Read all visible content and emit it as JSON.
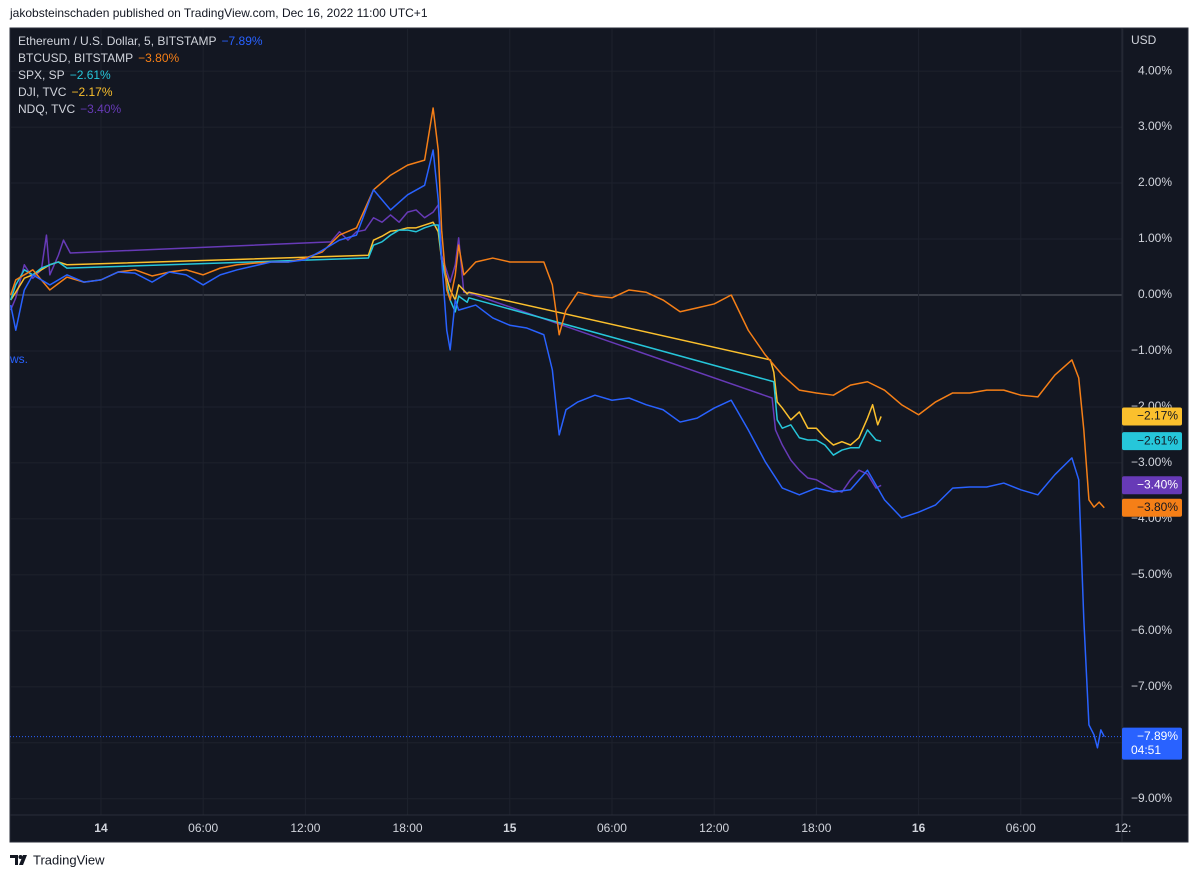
{
  "chart_data": {
    "type": "line",
    "title": "jakobsteinschaden published on TradingView.com, Dec 16, 2022 11:00 UTC+1",
    "source": "TradingView",
    "y_label": "USD",
    "annotation": "ws.",
    "grid": true,
    "legend": "top-left",
    "xlim": [
      -5.34,
      60
    ],
    "xticks": [
      {
        "value": 0,
        "label": "14"
      },
      {
        "value": 6,
        "label": "06:00"
      },
      {
        "value": 12,
        "label": "12:00"
      },
      {
        "value": 18,
        "label": "18:00"
      },
      {
        "value": 24,
        "label": "15"
      },
      {
        "value": 30,
        "label": "06:00"
      },
      {
        "value": 36,
        "label": "12:00"
      },
      {
        "value": 42,
        "label": "18:00"
      },
      {
        "value": 48,
        "label": "16"
      },
      {
        "value": 54,
        "label": "06:00"
      },
      {
        "value": 60,
        "label": "12:"
      }
    ],
    "ylim": [
      -9.29,
      4.77
    ],
    "yticks": [
      {
        "value": 4,
        "label": "4.00%"
      },
      {
        "value": 3,
        "label": "3.00%"
      },
      {
        "value": 2,
        "label": "2.00%"
      },
      {
        "value": 1,
        "label": "1.00%"
      },
      {
        "value": 0,
        "label": "0.00%"
      },
      {
        "value": -1,
        "label": "−1.00%"
      },
      {
        "value": -2,
        "label": "−2.00%"
      },
      {
        "value": -3,
        "label": "−3.00%"
      },
      {
        "value": -4,
        "label": "−4.00%"
      },
      {
        "value": -5,
        "label": "−5.00%"
      },
      {
        "value": -6,
        "label": "−6.00%"
      },
      {
        "value": -7,
        "label": "−7.00%"
      },
      {
        "value": -8,
        "label": "−8.00%"
      },
      {
        "value": -9,
        "label": "−9.00%"
      }
    ],
    "series": [
      {
        "name": "Ethereum / U.S. Dollar, 5, BITSTAMP",
        "color": "#2962ff",
        "last_value": -7.89,
        "last_label": "−7.89%",
        "countdown": "04:51",
        "x": [
          -5.3,
          -5,
          -4.5,
          -4,
          -3,
          -2,
          -1,
          0,
          1,
          2,
          3,
          4,
          5,
          6,
          7,
          8,
          9,
          10,
          11,
          12,
          13,
          14,
          15,
          16,
          17,
          18,
          19,
          19.5,
          19.8,
          20,
          20.3,
          20.5,
          20.8,
          21,
          22,
          23,
          24,
          25,
          26,
          26.5,
          26.9,
          27.3,
          28,
          29,
          30,
          31,
          32,
          33,
          34,
          35,
          36,
          37,
          38,
          39,
          40,
          41,
          42,
          43,
          44,
          45,
          46,
          47,
          48,
          49,
          50,
          51,
          52,
          53,
          54,
          55,
          56,
          57,
          57.4,
          57.7,
          58,
          58.3,
          58.5,
          58.7,
          58.9
        ],
        "values": [
          -0.18,
          -0.63,
          0.09,
          0.36,
          0.18,
          0.36,
          0.23,
          0.27,
          0.41,
          0.39,
          0.23,
          0.41,
          0.36,
          0.18,
          0.36,
          0.45,
          0.52,
          0.59,
          0.59,
          0.63,
          0.8,
          0.98,
          1.07,
          1.88,
          1.52,
          1.79,
          1.96,
          2.59,
          1.7,
          0.63,
          -0.63,
          -0.98,
          -0.09,
          -0.27,
          -0.18,
          -0.41,
          -0.54,
          -0.59,
          -0.71,
          -1.34,
          -2.5,
          -2.05,
          -1.91,
          -1.79,
          -1.88,
          -1.84,
          -1.96,
          -2.05,
          -2.27,
          -2.2,
          -2.02,
          -1.88,
          -2.41,
          -2.98,
          -3.45,
          -3.57,
          -3.45,
          -3.52,
          -3.48,
          -3.13,
          -3.66,
          -3.98,
          -3.88,
          -3.75,
          -3.45,
          -3.43,
          -3.43,
          -3.36,
          -3.48,
          -3.57,
          -3.21,
          -2.91,
          -3.3,
          -5.8,
          -7.68,
          -7.86,
          -8.09,
          -7.77,
          -7.89
        ]
      },
      {
        "name": "BTCUSD, BITSTAMP",
        "color": "#f57f17",
        "last_value": -3.8,
        "last_label": "−3.80%",
        "x": [
          -5.3,
          -5,
          -4,
          -3,
          -2,
          -1,
          0,
          1,
          2,
          3,
          4,
          5,
          6,
          7,
          8,
          9,
          10,
          11,
          12,
          13,
          14,
          15,
          16,
          17,
          18,
          19,
          19.5,
          19.8,
          20,
          20.3,
          20.5,
          20.8,
          21,
          21.3,
          22,
          23,
          24,
          25,
          26,
          26.5,
          26.9,
          27.3,
          28,
          29,
          30,
          31,
          32,
          33,
          34,
          35,
          36,
          37,
          38,
          39,
          40,
          41,
          42,
          43,
          44,
          45,
          46,
          47,
          48,
          49,
          50,
          51,
          52,
          53,
          54,
          55,
          56,
          57,
          57.4,
          57.7,
          58,
          58.3,
          58.6,
          58.9
        ],
        "values": [
          0,
          0.27,
          0.45,
          0.09,
          0.32,
          0.23,
          0.27,
          0.41,
          0.45,
          0.34,
          0.41,
          0.45,
          0.36,
          0.48,
          0.54,
          0.57,
          0.59,
          0.59,
          0.66,
          0.77,
          1.07,
          1.2,
          1.88,
          2.14,
          2.32,
          2.41,
          3.34,
          2.59,
          1.16,
          0.09,
          -0.09,
          0.36,
          0.89,
          0.36,
          0.59,
          0.66,
          0.59,
          0.59,
          0.59,
          0.18,
          -0.71,
          -0.27,
          0.05,
          -0.02,
          -0.05,
          0.09,
          0.05,
          -0.09,
          -0.3,
          -0.23,
          -0.16,
          0,
          -0.63,
          -1.07,
          -1.43,
          -1.7,
          -1.75,
          -1.79,
          -1.61,
          -1.55,
          -1.7,
          -1.96,
          -2.14,
          -1.91,
          -1.75,
          -1.75,
          -1.7,
          -1.7,
          -1.79,
          -1.82,
          -1.43,
          -1.16,
          -1.48,
          -2.41,
          -3.66,
          -3.79,
          -3.7,
          -3.8
        ]
      },
      {
        "name": "SPX, SP",
        "color": "#26c6da",
        "last_value": -2.61,
        "last_label": "−2.61%",
        "x": [
          -5.3,
          -5,
          -4.5,
          -4,
          -3.5,
          -3,
          -2.5,
          -2,
          15.7,
          16,
          16.5,
          17,
          17.5,
          18,
          18.5,
          19,
          19.5,
          19.8,
          20,
          20.5,
          20.8,
          21,
          21.5,
          21.6,
          39.5,
          39.7,
          40,
          40.5,
          41,
          41.5,
          42,
          42.5,
          43,
          43.5,
          44,
          44.5,
          45,
          45.5,
          45.8
        ],
        "values": [
          -0.09,
          0.18,
          0.45,
          0.36,
          0.48,
          0.54,
          0.59,
          0.48,
          0.66,
          0.89,
          0.95,
          1.07,
          1.16,
          1.16,
          1.13,
          1.2,
          1.25,
          1.25,
          0.63,
          -0.09,
          -0.3,
          -0.02,
          -0.13,
          -0.05,
          -1.55,
          -2.23,
          -2.38,
          -2.32,
          -2.55,
          -2.59,
          -2.59,
          -2.68,
          -2.86,
          -2.77,
          -2.73,
          -2.73,
          -2.41,
          -2.59,
          -2.61
        ]
      },
      {
        "name": "DJI, TVC",
        "color": "#fbc02d",
        "last_value": -2.17,
        "last_label": "−2.17%",
        "x": [
          -5.3,
          -5,
          -4.5,
          -4,
          -3.5,
          -3,
          -2.5,
          -2,
          15.7,
          16,
          16.5,
          17,
          17.5,
          18,
          18.5,
          19,
          19.5,
          19.8,
          20,
          20.5,
          20.8,
          21,
          21.5,
          21.6,
          39.3,
          39.5,
          39.7,
          40,
          40.5,
          41,
          41.5,
          42,
          42.5,
          43,
          43.5,
          44,
          44.5,
          45,
          45.3,
          45.6,
          45.8
        ],
        "values": [
          -0.09,
          0.05,
          0.3,
          0.36,
          0.45,
          0.54,
          0.59,
          0.54,
          0.71,
          0.98,
          1.05,
          1.14,
          1.16,
          1.2,
          1.2,
          1.25,
          1.3,
          1.13,
          0.63,
          0.09,
          -0.09,
          0.18,
          0.02,
          0.05,
          -1.16,
          -1.38,
          -1.91,
          -2.02,
          -2.23,
          -2.09,
          -2.38,
          -2.38,
          -2.55,
          -2.68,
          -2.62,
          -2.68,
          -2.55,
          -2.2,
          -1.96,
          -2.32,
          -2.17
        ]
      },
      {
        "name": "NDQ, TVC",
        "color": "#673ab7",
        "last_value": -3.4,
        "last_label": "−3.40%",
        "x": [
          -5.3,
          -5,
          -4.5,
          -4,
          -3.5,
          -3.2,
          -3,
          -2.5,
          -2.2,
          -1.8,
          13.5,
          14,
          14.5,
          15,
          15.5,
          16,
          16.5,
          17,
          17.5,
          18,
          18.5,
          19,
          19.5,
          19.8,
          20,
          20.5,
          20.8,
          21,
          21.3,
          21.6,
          39.4,
          39.6,
          40,
          40.5,
          41,
          41.5,
          42,
          42.5,
          43,
          43.5,
          44,
          44.5,
          45,
          45.5,
          45.8
        ],
        "values": [
          -0.27,
          -0.05,
          0.54,
          0.3,
          0.45,
          1.07,
          0.36,
          0.71,
          0.98,
          0.75,
          0.95,
          1.13,
          0.98,
          1.13,
          1.16,
          1.38,
          1.3,
          1.43,
          1.3,
          1.48,
          1.52,
          1.38,
          1.48,
          1.61,
          0.71,
          0.23,
          0.54,
          1.02,
          0.05,
          0.04,
          -1.84,
          -2.41,
          -2.68,
          -2.95,
          -3.13,
          -3.27,
          -3.3,
          -3.39,
          -3.48,
          -3.52,
          -3.3,
          -3.13,
          -3.2,
          -3.45,
          -3.4
        ]
      }
    ]
  }
}
